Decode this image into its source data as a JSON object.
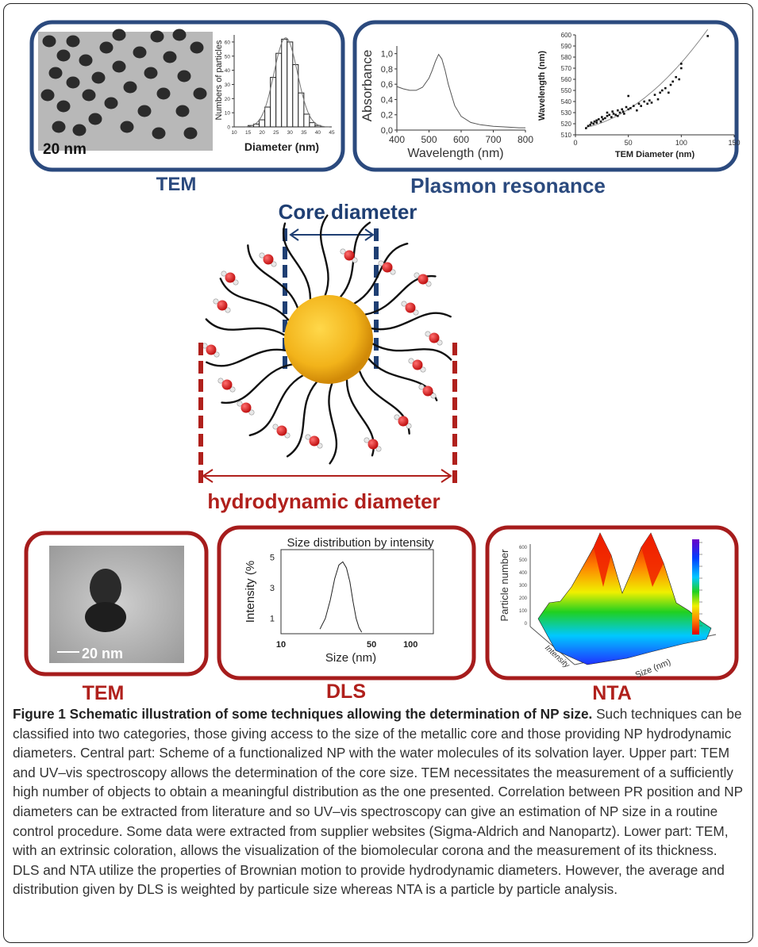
{
  "top": {
    "tem_panel": {
      "scale_label": "20 nm",
      "histogram": {
        "ylabel": "Numbers of particles",
        "xlabel": "Diameter (nm)",
        "y_ticks": [
          "0",
          "10",
          "20",
          "30",
          "40",
          "50",
          "60"
        ],
        "x_ticks": [
          "10",
          "15",
          "20",
          "25",
          "30",
          "35",
          "40",
          "45"
        ]
      },
      "caption_label": "TEM"
    },
    "plasmon_panel": {
      "absorbance_chart": {
        "ylabel": "Absorbance",
        "xlabel": "Wavelength (nm)",
        "y_ticks": [
          "0,0",
          "0,2",
          "0,4",
          "0,6",
          "0,8",
          "1,0"
        ],
        "x_ticks": [
          "400",
          "500",
          "600",
          "700",
          "800"
        ]
      },
      "scatter_chart": {
        "ylabel": "Wavelength (nm)",
        "xlabel": "TEM Diameter (nm)",
        "y_ticks": [
          "510",
          "520",
          "530",
          "540",
          "550",
          "560",
          "570",
          "580",
          "590",
          "600"
        ],
        "x_ticks": [
          "0",
          "50",
          "100",
          "150"
        ]
      },
      "caption_label": "Plasmon resonance"
    }
  },
  "middle": {
    "core_label": "Core diameter",
    "hydro_label": "hydrodynamic diameter"
  },
  "bottom": {
    "tem": {
      "scale_label": "20 nm",
      "caption_label": "TEM"
    },
    "dls": {
      "title": "Size distribution by intensity",
      "ylabel": "Intensity (%",
      "xlabel": "Size (nm)",
      "y_ticks": [
        "1",
        "3",
        "5"
      ],
      "x_ticks": [
        "10",
        "50",
        "100"
      ],
      "caption_label": "DLS"
    },
    "nta": {
      "zlabel": "Particle number",
      "xlabel": "Size (nm)",
      "ylabel": "Intensity",
      "z_ticks": [
        "0",
        "100",
        "200",
        "300",
        "400",
        "500",
        "600"
      ],
      "caption_label": "NTA"
    }
  },
  "chart_data": [
    {
      "type": "bar",
      "categories": [
        "16",
        "18",
        "20",
        "22",
        "24",
        "26",
        "28",
        "30",
        "32",
        "34",
        "36",
        "38",
        "40"
      ],
      "values": [
        1,
        2,
        5,
        14,
        35,
        52,
        62,
        60,
        44,
        24,
        9,
        3,
        1
      ],
      "xlabel": "Diameter (nm)",
      "ylabel": "Numbers of particles",
      "xlim": [
        10,
        45
      ],
      "ylim": [
        0,
        65
      ],
      "overlay": "gaussian fit line"
    },
    {
      "type": "line",
      "x": [
        400,
        420,
        440,
        460,
        480,
        500,
        510,
        520,
        530,
        540,
        550,
        560,
        580,
        600,
        630,
        660,
        700,
        740,
        780,
        800
      ],
      "y": [
        0.57,
        0.54,
        0.52,
        0.52,
        0.56,
        0.68,
        0.78,
        0.9,
        0.99,
        0.93,
        0.78,
        0.6,
        0.32,
        0.18,
        0.1,
        0.07,
        0.05,
        0.04,
        0.03,
        0.03
      ],
      "xlabel": "Wavelength (nm)",
      "ylabel": "Absorbance",
      "xlim": [
        400,
        800
      ],
      "ylim": [
        0.0,
        1.1
      ]
    },
    {
      "type": "scatter",
      "x": [
        10,
        12,
        14,
        15,
        17,
        18,
        20,
        20,
        22,
        24,
        25,
        26,
        28,
        30,
        30,
        32,
        34,
        35,
        36,
        38,
        40,
        40,
        42,
        44,
        45,
        46,
        48,
        50,
        50,
        52,
        55,
        58,
        60,
        62,
        65,
        68,
        70,
        72,
        75,
        78,
        80,
        82,
        85,
        88,
        90,
        92,
        95,
        98,
        100,
        100,
        125
      ],
      "y": [
        516,
        518,
        519,
        521,
        520,
        522,
        523,
        521,
        524,
        522,
        526,
        524,
        525,
        527,
        530,
        528,
        526,
        531,
        529,
        528,
        532,
        527,
        530,
        533,
        531,
        529,
        535,
        533,
        545,
        534,
        536,
        532,
        538,
        536,
        540,
        538,
        541,
        539,
        546,
        542,
        548,
        550,
        552,
        548,
        555,
        558,
        562,
        560,
        570,
        574,
        599
      ],
      "xlabel": "TEM Diameter (nm)",
      "ylabel": "Wavelength (nm)",
      "xlim": [
        0,
        150
      ],
      "ylim": [
        510,
        600
      ],
      "overlay": "fit line"
    },
    {
      "type": "line",
      "x": [
        20,
        22,
        24,
        26,
        28,
        30,
        32,
        34,
        36,
        38,
        40,
        42
      ],
      "y": [
        0.3,
        1.0,
        2.2,
        3.6,
        4.5,
        4.7,
        4.3,
        3.4,
        2.1,
        1.0,
        0.4,
        0.1
      ],
      "title": "Size distribution by intensity",
      "xlabel": "Size (nm)",
      "ylabel": "Intensity (%",
      "x_scale": "log",
      "xlim": [
        10,
        150
      ],
      "ylim": [
        0,
        5.5
      ]
    }
  ],
  "caption": {
    "title": "Figure 1 Schematic illustration of some techniques allowing the determination of NP size.",
    "body": " Such techniques can be classified into two categories, those giving access to the size of the metallic core and those providing NP hydrodynamic diameters. Central part: Scheme of a functionalized NP with the water molecules of its solvation layer. Upper part: TEM and UV–vis spectroscopy allows the determination of the core size. TEM necessitates the measurement of a sufficiently high number of objects to obtain a meaningful distribution as the one presented. Correlation between PR position and NP diameters can be extracted from literature and so UV–vis spectroscopy can give an estimation of NP size in a routine control procedure. Some data were extracted from supplier websites (Sigma-Aldrich and Nanopartz). Lower part: TEM, with an extrinsic coloration, allows the visualization of the biomolecular corona and the measurement of its thickness. DLS and NTA utilize the properties of Brownian motion to provide hydrodynamic diameters. However, the average and distribution given by DLS is weighted by particule size whereas NTA is a particle by particle analysis."
  },
  "colors": {
    "panel_top_border": "#2b4a7e",
    "panel_bottom_border": "#a61c1c",
    "core_label": "#1f3f73",
    "hydro_label": "#b0201c",
    "nanoparticle": "#f2b31a",
    "water_o": "#d42020"
  }
}
